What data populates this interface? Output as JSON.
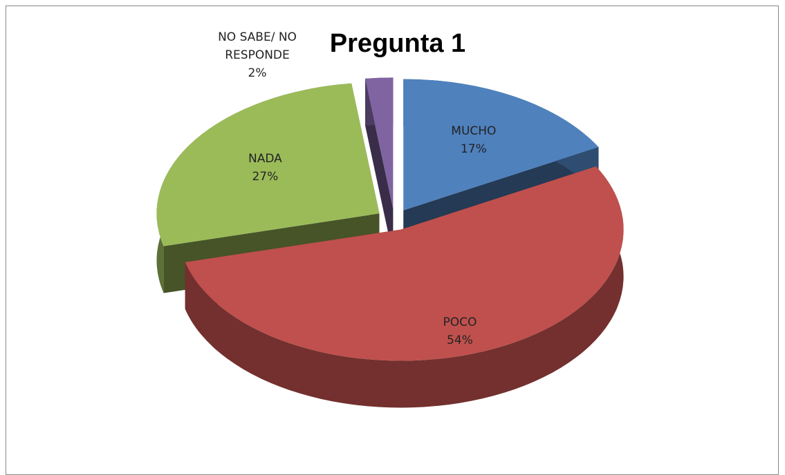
{
  "chart_data": {
    "type": "pie",
    "title": "Pregunta 1",
    "categories": [
      "MUCHO",
      "POCO",
      "NADA",
      "NO SABE/ NO RESPONDE"
    ],
    "values": [
      17,
      54,
      27,
      2
    ],
    "value_labels": [
      "17%",
      "54%",
      "27%",
      "2%"
    ],
    "colors": [
      "#4f81bd",
      "#c0504d",
      "#9bbb59",
      "#8064a2"
    ]
  }
}
